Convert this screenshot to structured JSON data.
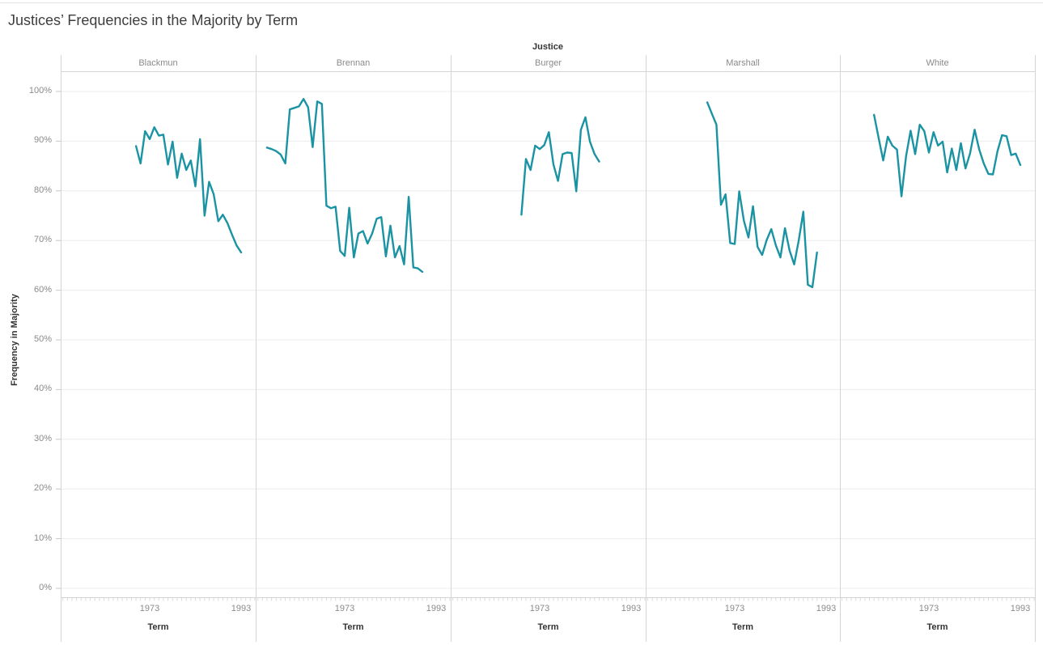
{
  "chart_data": {
    "type": "line",
    "title": "Justices’ Frequencies in the Majority by Term",
    "column_field": "Justice",
    "xlabel": "Term",
    "ylabel": "Frequency in Majority",
    "x_tick_labels": [
      "1973",
      "1993"
    ],
    "x_tick_years": [
      1973,
      1993
    ],
    "x_domain": [
      1954,
      1996
    ],
    "y_domain": [
      0,
      100
    ],
    "y_ticks": [
      0,
      10,
      20,
      30,
      40,
      50,
      60,
      70,
      80,
      90,
      100
    ],
    "y_tick_labels": [
      "0%",
      "10%",
      "20%",
      "30%",
      "40%",
      "50%",
      "60%",
      "70%",
      "80%",
      "90%",
      "100%"
    ],
    "grid": true,
    "legend": "none",
    "line_color": "#1a93a3",
    "panels": [
      {
        "name": "Blackmun",
        "x": [
          1970,
          1971,
          1972,
          1973,
          1974,
          1975,
          1976,
          1977,
          1978,
          1979,
          1980,
          1981,
          1982,
          1983,
          1984,
          1985,
          1986,
          1987,
          1988,
          1989,
          1990,
          1991,
          1992,
          1993
        ],
        "y": [
          89.0,
          85.5,
          92.0,
          90.4,
          92.8,
          91.1,
          91.3,
          85.3,
          89.9,
          82.6,
          87.5,
          84.2,
          86.1,
          80.9,
          90.4,
          75.0,
          81.8,
          79.3,
          73.9,
          75.2,
          73.5,
          71.2,
          69.0,
          67.6
        ]
      },
      {
        "name": "Brennan",
        "x": [
          1956,
          1957,
          1958,
          1959,
          1960,
          1961,
          1962,
          1963,
          1964,
          1965,
          1966,
          1967,
          1968,
          1969,
          1970,
          1971,
          1972,
          1973,
          1974,
          1975,
          1976,
          1977,
          1978,
          1979,
          1980,
          1981,
          1982,
          1983,
          1984,
          1985,
          1986,
          1987,
          1988,
          1989,
          1990
        ],
        "y": [
          88.7,
          88.4,
          88.0,
          87.3,
          85.5,
          96.4,
          96.7,
          97.0,
          98.5,
          96.8,
          88.8,
          98.0,
          97.5,
          77.0,
          76.5,
          76.8,
          67.9,
          66.9,
          76.6,
          66.6,
          71.4,
          71.9,
          69.4,
          71.4,
          74.4,
          74.7,
          66.8,
          73.0,
          66.6,
          68.9,
          65.2,
          78.8,
          64.6,
          64.4,
          63.7
        ]
      },
      {
        "name": "Burger",
        "x": [
          1969,
          1970,
          1971,
          1972,
          1973,
          1974,
          1975,
          1976,
          1977,
          1978,
          1979,
          1980,
          1981,
          1982,
          1983,
          1984,
          1985,
          1986
        ],
        "y": [
          75.2,
          86.4,
          84.2,
          89.1,
          88.4,
          89.2,
          91.8,
          85.3,
          82.0,
          87.4,
          87.7,
          87.6,
          79.9,
          92.3,
          94.8,
          89.9,
          87.4,
          85.9
        ]
      },
      {
        "name": "Marshall",
        "x": [
          1967,
          1968,
          1969,
          1970,
          1971,
          1972,
          1973,
          1974,
          1975,
          1976,
          1977,
          1978,
          1979,
          1980,
          1981,
          1982,
          1983,
          1984,
          1985,
          1986,
          1987,
          1988,
          1989,
          1990,
          1991
        ],
        "y": [
          97.8,
          95.5,
          93.3,
          77.2,
          79.3,
          69.5,
          69.3,
          79.9,
          74.0,
          70.6,
          76.9,
          68.7,
          67.1,
          70.1,
          72.3,
          69.0,
          66.6,
          72.5,
          68.0,
          65.2,
          70.0,
          75.8,
          61.1,
          60.6,
          67.6
        ]
      },
      {
        "name": "White",
        "x": [
          1961,
          1962,
          1963,
          1964,
          1965,
          1966,
          1967,
          1968,
          1969,
          1970,
          1971,
          1972,
          1973,
          1974,
          1975,
          1976,
          1977,
          1978,
          1979,
          1980,
          1981,
          1982,
          1983,
          1984,
          1985,
          1986,
          1987,
          1988,
          1989,
          1990,
          1991,
          1992,
          1993
        ],
        "y": [
          95.3,
          90.7,
          86.1,
          90.9,
          89.1,
          88.3,
          78.9,
          87.0,
          92.1,
          87.4,
          93.3,
          92.0,
          87.7,
          91.8,
          89.1,
          89.9,
          83.7,
          88.5,
          84.2,
          89.6,
          84.5,
          87.5,
          92.3,
          88.3,
          85.5,
          83.4,
          83.3,
          88.0,
          91.2,
          91.0,
          87.2,
          87.5,
          85.2
        ]
      }
    ]
  },
  "colors": {
    "line": "#1a93a3",
    "gridline": "#ececec",
    "border": "#d4d4d4",
    "label_gray": "#8a8a8a",
    "label_dark": "#333333"
  }
}
